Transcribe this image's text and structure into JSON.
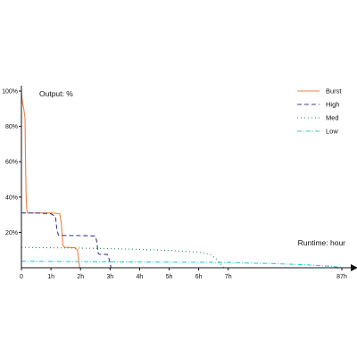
{
  "chart_data": {
    "type": "line",
    "title": "",
    "ylabel": "Output: %",
    "xlabel": "Runtime: hour",
    "ylim": [
      0,
      100
    ],
    "x_tick_labels": [
      "0",
      "1h",
      "2h",
      "3h",
      "4h",
      "5h",
      "6h",
      "7h",
      "87h"
    ],
    "x_tick_values": [
      0,
      1,
      2,
      3,
      4,
      5,
      6,
      7,
      87
    ],
    "y_tick_labels": [
      "20%",
      "40%",
      "60%",
      "80%",
      "100%"
    ],
    "y_tick_values": [
      20,
      40,
      60,
      80,
      100
    ],
    "grid": false,
    "legend_position": "top-right",
    "series": [
      {
        "name": "Burst",
        "color": "#f08040",
        "style": "solid",
        "points": [
          [
            0,
            100
          ],
          [
            0.02,
            95
          ],
          [
            0.08,
            90
          ],
          [
            0.12,
            85
          ],
          [
            0.14,
            60
          ],
          [
            0.16,
            40
          ],
          [
            0.18,
            33
          ],
          [
            0.2,
            31
          ],
          [
            0.5,
            31
          ],
          [
            1.0,
            31
          ],
          [
            1.3,
            30.5
          ],
          [
            1.35,
            25
          ],
          [
            1.4,
            13
          ],
          [
            1.45,
            11.5
          ],
          [
            1.6,
            11.5
          ],
          [
            1.8,
            11.3
          ],
          [
            1.9,
            10
          ],
          [
            1.95,
            3
          ],
          [
            1.97,
            0
          ]
        ]
      },
      {
        "name": "High",
        "color": "#3c3c8c",
        "style": "dashed",
        "points": [
          [
            0,
            31
          ],
          [
            0.5,
            31
          ],
          [
            1.0,
            30.5
          ],
          [
            1.15,
            29
          ],
          [
            1.2,
            22
          ],
          [
            1.25,
            18.5
          ],
          [
            1.4,
            18.3
          ],
          [
            2.0,
            18.2
          ],
          [
            2.5,
            18
          ],
          [
            2.55,
            15
          ],
          [
            2.6,
            8
          ],
          [
            2.65,
            7.6
          ],
          [
            2.9,
            7.5
          ],
          [
            2.95,
            6
          ],
          [
            3.0,
            3
          ],
          [
            3.03,
            0
          ]
        ]
      },
      {
        "name": "Med",
        "color": "#2a8a5a",
        "style": "dotted",
        "points": [
          [
            0,
            11.5
          ],
          [
            1,
            11.3
          ],
          [
            2,
            11.1
          ],
          [
            3,
            10.8
          ],
          [
            4,
            10.4
          ],
          [
            5,
            9.8
          ],
          [
            6,
            8.8
          ],
          [
            6.4,
            7.5
          ],
          [
            6.6,
            5
          ],
          [
            6.75,
            2
          ],
          [
            6.85,
            0
          ]
        ]
      },
      {
        "name": "Low",
        "color": "#30c8d8",
        "style": "dashdot",
        "points": [
          [
            0,
            3.7
          ],
          [
            1,
            3.6
          ],
          [
            2,
            3.5
          ],
          [
            3,
            3.4
          ],
          [
            4,
            3.3
          ],
          [
            5,
            3.2
          ],
          [
            6,
            3.1
          ],
          [
            7,
            3.0
          ],
          [
            20,
            2.7
          ],
          [
            40,
            2.3
          ],
          [
            60,
            1.7
          ],
          [
            80,
            0.8
          ],
          [
            87,
            0
          ]
        ]
      }
    ]
  }
}
